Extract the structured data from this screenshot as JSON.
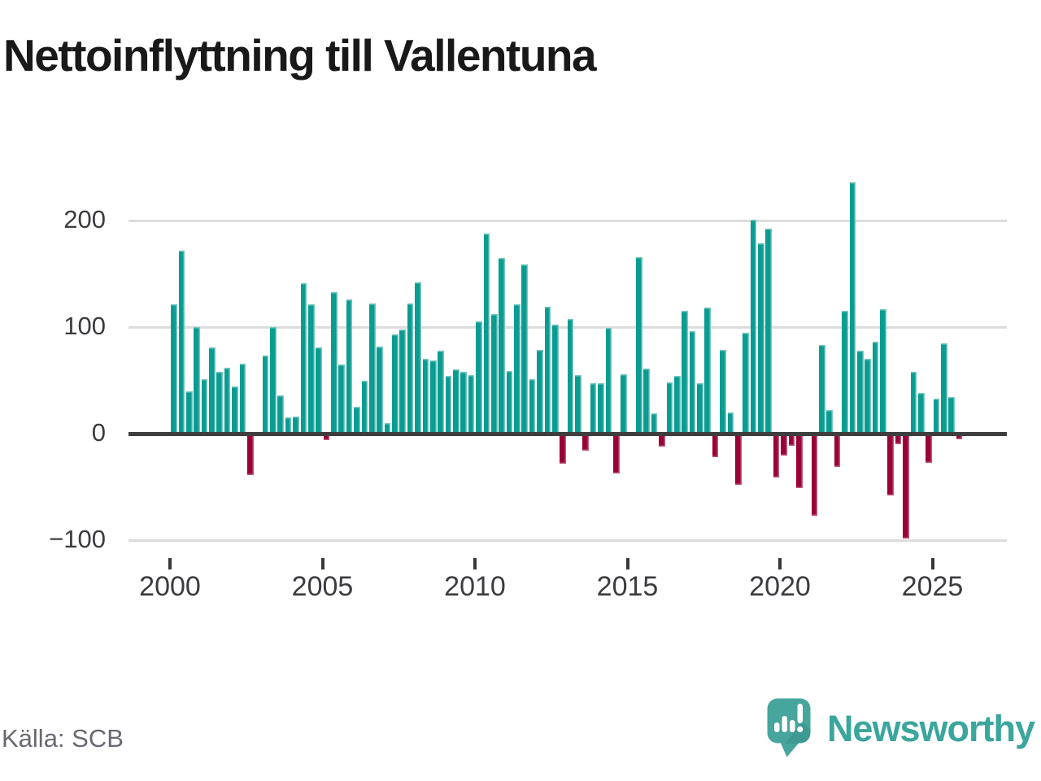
{
  "title": "Nettoinflyttning till Vallentuna",
  "source": "Källa: SCB",
  "branding": {
    "logo_text": "Newsworthy"
  },
  "colors": {
    "positive": "#0a9c91",
    "negative": "#9a0237",
    "grid": "#dcdcdc",
    "baseline": "#3e3e3e",
    "axis_text": "#3b3b40",
    "title_text": "#191919",
    "source_text": "#686870",
    "brand_teal": "#3aa69d",
    "logo_icon_teal": "#46a69e"
  },
  "y_axis": {
    "labels": [
      "200",
      "100",
      "0",
      "−100"
    ]
  },
  "x_axis": {
    "labels": [
      "2000",
      "2005",
      "2010",
      "2015",
      "2020",
      "2025"
    ]
  },
  "chart_data": {
    "type": "bar",
    "title": "Nettoinflyttning till Vallentuna",
    "frequency": "quarterly",
    "start": {
      "year": 2000,
      "quarter": 1
    },
    "end": {
      "year": 2025,
      "quarter": 4
    },
    "xlabel": "",
    "ylabel": "",
    "yticks": [
      -100,
      0,
      100,
      200
    ],
    "xticks": [
      2000,
      2005,
      2010,
      2015,
      2020,
      2025
    ],
    "grid": true,
    "legend_position": "none",
    "values": [
      121,
      172,
      40,
      100,
      51,
      81,
      58,
      62,
      44,
      66,
      -37,
      0,
      73,
      100,
      36,
      15,
      16,
      141,
      121,
      81,
      -4,
      133,
      65,
      126,
      25,
      50,
      122,
      82,
      10,
      93,
      98,
      122,
      142,
      70,
      69,
      78,
      54,
      60,
      58,
      55,
      105,
      188,
      112,
      165,
      59,
      121,
      159,
      51,
      79,
      119,
      102,
      -26,
      108,
      55,
      -14,
      47,
      47,
      99,
      -35,
      56,
      0,
      166,
      61,
      19,
      -10,
      48,
      54,
      115,
      96,
      47,
      118,
      -20,
      79,
      20,
      -46,
      95,
      201,
      179,
      192,
      -39,
      -18,
      -9,
      -49,
      0,
      -75,
      83,
      22,
      -29,
      115,
      236,
      78,
      70,
      86,
      117,
      -56,
      -8,
      -96,
      58,
      38,
      -25,
      33,
      85,
      34,
      -3
    ]
  }
}
